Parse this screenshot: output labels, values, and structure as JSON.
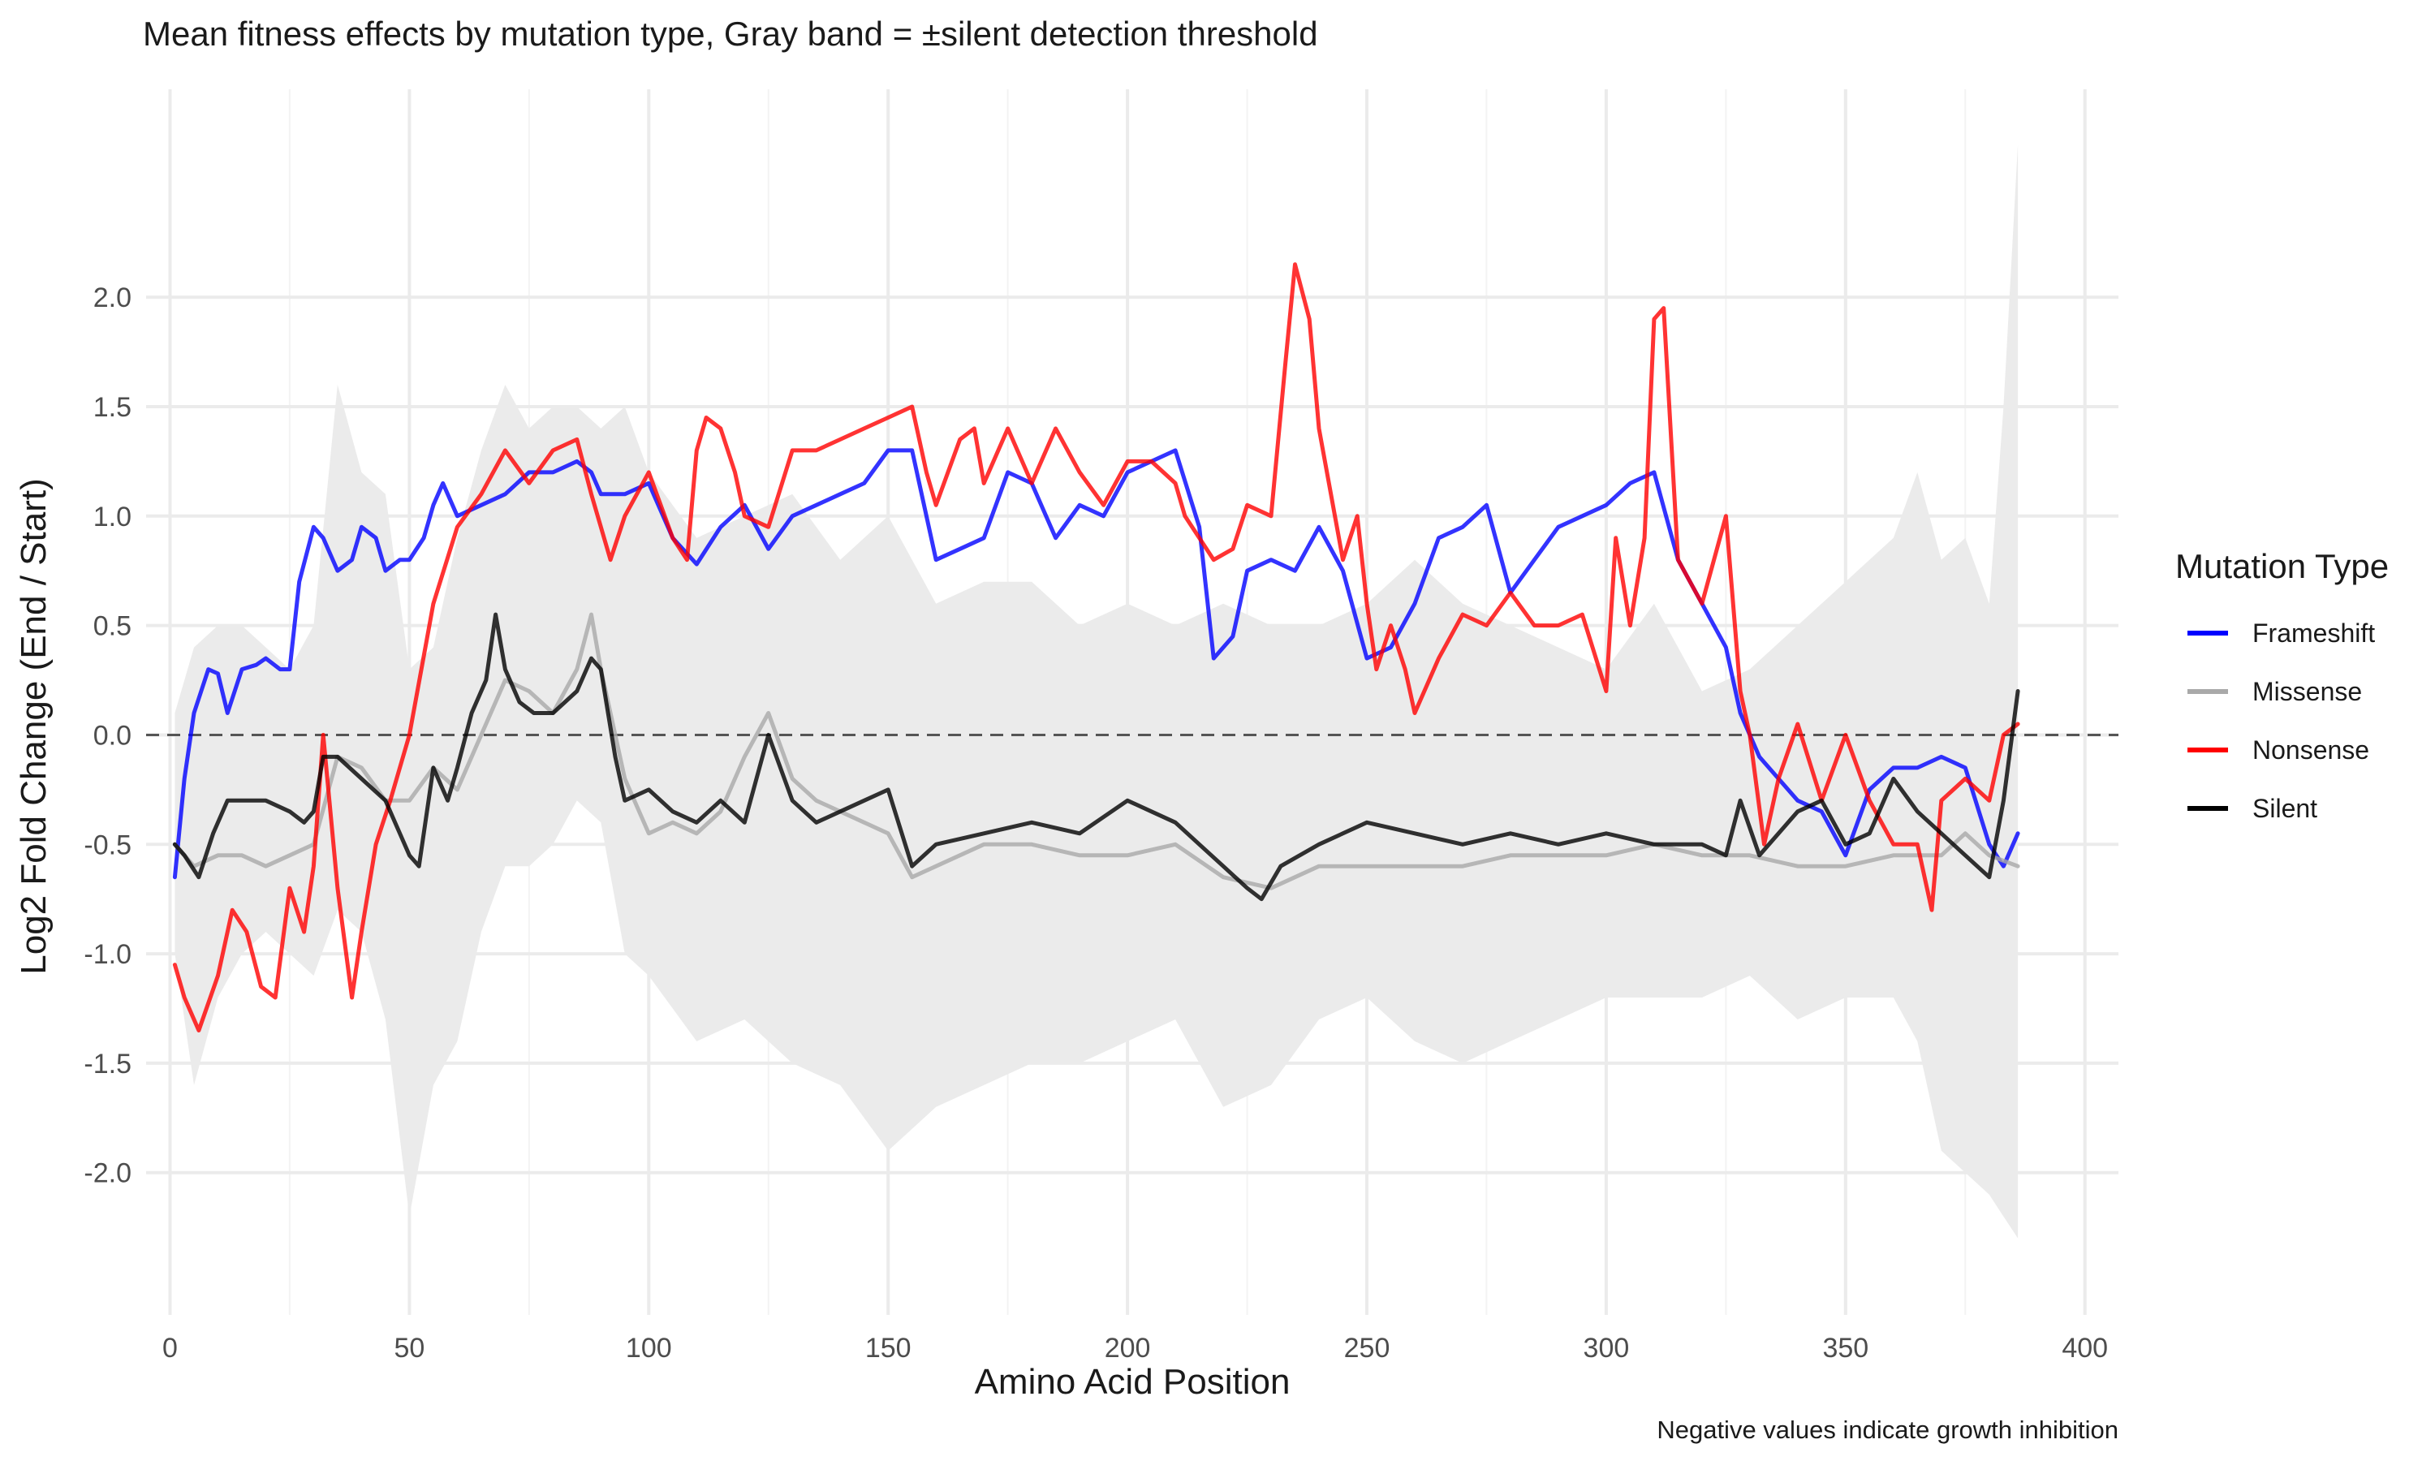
{
  "chart_data": {
    "type": "line",
    "title": "Mean fitness effects by mutation type, Gray band = ±silent detection threshold",
    "xlabel": "Amino Acid Position",
    "ylabel": "Log2 Fold Change (End / Start)",
    "caption": "Negative values indicate growth inhibition",
    "xlim": [
      -5,
      407
    ],
    "ylim": [
      -2.65,
      2.95
    ],
    "x_ticks": [
      0,
      50,
      100,
      150,
      200,
      250,
      300,
      350,
      400
    ],
    "y_ticks": [
      -2.0,
      -1.5,
      -1.0,
      -0.5,
      0.0,
      0.5,
      1.0,
      1.5,
      2.0
    ],
    "x_tick_labels": [
      "0",
      "50",
      "100",
      "150",
      "200",
      "250",
      "300",
      "350",
      "400"
    ],
    "y_tick_labels": [
      "-2.0",
      "-1.5",
      "-1.0",
      "-0.5",
      "0.0",
      "0.5",
      "1.0",
      "1.5",
      "2.0"
    ],
    "grid": true,
    "zero_line": {
      "y": 0,
      "style": "dashed"
    },
    "legend": {
      "title": "Mutation Type",
      "position": "right"
    },
    "band": {
      "name": "±silent detection threshold",
      "color": "#ebebeb",
      "x": [
        1,
        5,
        10,
        15,
        20,
        25,
        30,
        35,
        40,
        45,
        50,
        55,
        60,
        65,
        70,
        75,
        80,
        85,
        90,
        95,
        100,
        110,
        120,
        130,
        140,
        150,
        160,
        170,
        180,
        190,
        200,
        210,
        220,
        230,
        240,
        250,
        260,
        270,
        280,
        290,
        300,
        310,
        320,
        330,
        340,
        350,
        360,
        365,
        370,
        375,
        380,
        383,
        386
      ],
      "upper": [
        0.1,
        0.4,
        0.5,
        0.5,
        0.4,
        0.3,
        0.5,
        1.6,
        1.2,
        1.1,
        0.3,
        0.4,
        0.9,
        1.3,
        1.6,
        1.4,
        1.5,
        1.5,
        1.4,
        1.5,
        1.2,
        0.9,
        1.0,
        1.1,
        0.8,
        1.0,
        0.6,
        0.7,
        0.7,
        0.5,
        0.6,
        0.5,
        0.6,
        0.5,
        0.5,
        0.6,
        0.8,
        0.6,
        0.5,
        0.4,
        0.3,
        0.6,
        0.2,
        0.3,
        0.5,
        0.7,
        0.9,
        1.2,
        0.8,
        0.9,
        0.6,
        1.5,
        2.7
      ],
      "lower": [
        -1.0,
        -1.6,
        -1.2,
        -1.0,
        -0.9,
        -1.0,
        -1.1,
        -0.8,
        -0.9,
        -1.3,
        -2.2,
        -1.6,
        -1.4,
        -0.9,
        -0.6,
        -0.6,
        -0.5,
        -0.3,
        -0.4,
        -1.0,
        -1.1,
        -1.4,
        -1.3,
        -1.5,
        -1.6,
        -1.9,
        -1.7,
        -1.6,
        -1.5,
        -1.5,
        -1.4,
        -1.3,
        -1.7,
        -1.6,
        -1.3,
        -1.2,
        -1.4,
        -1.5,
        -1.4,
        -1.3,
        -1.2,
        -1.2,
        -1.2,
        -1.1,
        -1.3,
        -1.2,
        -1.2,
        -1.4,
        -1.9,
        -2.0,
        -2.1,
        -2.2,
        -2.3
      ]
    },
    "series": [
      {
        "name": "Frameshift",
        "color": "#0000ff",
        "x": [
          1,
          3,
          5,
          8,
          10,
          12,
          15,
          18,
          20,
          23,
          25,
          27,
          30,
          32,
          35,
          38,
          40,
          43,
          45,
          48,
          50,
          53,
          55,
          57,
          60,
          65,
          70,
          75,
          80,
          85,
          88,
          90,
          95,
          100,
          105,
          110,
          115,
          120,
          125,
          130,
          135,
          140,
          145,
          150,
          155,
          160,
          165,
          170,
          175,
          180,
          185,
          190,
          195,
          200,
          205,
          210,
          215,
          218,
          222,
          225,
          230,
          235,
          240,
          245,
          250,
          255,
          260,
          265,
          270,
          275,
          280,
          285,
          290,
          295,
          300,
          305,
          310,
          315,
          320,
          325,
          328,
          332,
          336,
          340,
          345,
          350,
          355,
          360,
          365,
          370,
          375,
          380,
          383,
          386
        ],
        "values": [
          -0.65,
          -0.2,
          0.1,
          0.3,
          0.28,
          0.1,
          0.3,
          0.32,
          0.35,
          0.3,
          0.3,
          0.7,
          0.95,
          0.9,
          0.75,
          0.8,
          0.95,
          0.9,
          0.75,
          0.8,
          0.8,
          0.9,
          1.05,
          1.15,
          1.0,
          1.05,
          1.1,
          1.2,
          1.2,
          1.25,
          1.2,
          1.1,
          1.1,
          1.15,
          0.9,
          0.78,
          0.95,
          1.05,
          0.85,
          1.0,
          1.05,
          1.1,
          1.15,
          1.3,
          1.3,
          0.8,
          0.85,
          0.9,
          1.2,
          1.15,
          0.9,
          1.05,
          1.0,
          1.2,
          1.25,
          1.3,
          0.95,
          0.35,
          0.45,
          0.75,
          0.8,
          0.75,
          0.95,
          0.75,
          0.35,
          0.4,
          0.6,
          0.9,
          0.95,
          1.05,
          0.65,
          0.8,
          0.95,
          1.0,
          1.05,
          1.15,
          1.2,
          0.8,
          0.6,
          0.4,
          0.1,
          -0.1,
          -0.2,
          -0.3,
          -0.35,
          -0.55,
          -0.25,
          -0.15,
          -0.15,
          -0.1,
          -0.15,
          -0.5,
          -0.6,
          -0.45
        ]
      },
      {
        "name": "Missense",
        "color": "#a9a9a9",
        "x": [
          1,
          5,
          10,
          15,
          20,
          25,
          30,
          35,
          40,
          45,
          50,
          55,
          60,
          65,
          70,
          75,
          80,
          85,
          88,
          90,
          93,
          95,
          100,
          105,
          110,
          115,
          120,
          125,
          130,
          135,
          140,
          145,
          150,
          155,
          160,
          170,
          180,
          190,
          200,
          210,
          220,
          230,
          240,
          250,
          260,
          270,
          280,
          290,
          300,
          310,
          320,
          330,
          340,
          350,
          360,
          370,
          375,
          380,
          386
        ],
        "values": [
          -0.5,
          -0.6,
          -0.55,
          -0.55,
          -0.6,
          -0.55,
          -0.5,
          -0.1,
          -0.15,
          -0.3,
          -0.3,
          -0.15,
          -0.25,
          0.0,
          0.25,
          0.2,
          0.1,
          0.3,
          0.55,
          0.3,
          0.0,
          -0.2,
          -0.45,
          -0.4,
          -0.45,
          -0.35,
          -0.1,
          0.1,
          -0.2,
          -0.3,
          -0.35,
          -0.4,
          -0.45,
          -0.65,
          -0.6,
          -0.5,
          -0.5,
          -0.55,
          -0.55,
          -0.5,
          -0.65,
          -0.7,
          -0.6,
          -0.6,
          -0.6,
          -0.6,
          -0.55,
          -0.55,
          -0.55,
          -0.5,
          -0.55,
          -0.55,
          -0.6,
          -0.6,
          -0.55,
          -0.55,
          -0.45,
          -0.55,
          -0.6
        ]
      },
      {
        "name": "Nonsense",
        "color": "#ff0000",
        "x": [
          1,
          3,
          6,
          10,
          13,
          16,
          19,
          22,
          25,
          28,
          30,
          32,
          35,
          38,
          40,
          43,
          46,
          50,
          55,
          60,
          65,
          70,
          75,
          80,
          85,
          88,
          92,
          95,
          100,
          105,
          108,
          110,
          112,
          115,
          118,
          120,
          125,
          130,
          135,
          140,
          145,
          150,
          155,
          158,
          160,
          165,
          168,
          170,
          175,
          180,
          185,
          190,
          195,
          200,
          205,
          210,
          212,
          215,
          218,
          222,
          225,
          230,
          233,
          235,
          238,
          240,
          245,
          248,
          250,
          252,
          255,
          258,
          260,
          265,
          270,
          275,
          280,
          285,
          290,
          295,
          300,
          302,
          305,
          308,
          310,
          312,
          315,
          320,
          325,
          328,
          330,
          333,
          336,
          340,
          345,
          350,
          355,
          360,
          365,
          368,
          370,
          375,
          380,
          383,
          386
        ],
        "values": [
          -1.05,
          -1.2,
          -1.35,
          -1.1,
          -0.8,
          -0.9,
          -1.15,
          -1.2,
          -0.7,
          -0.9,
          -0.6,
          0.0,
          -0.7,
          -1.2,
          -0.9,
          -0.5,
          -0.3,
          0.0,
          0.6,
          0.95,
          1.1,
          1.3,
          1.15,
          1.3,
          1.35,
          1.1,
          0.8,
          1.0,
          1.2,
          0.9,
          0.8,
          1.3,
          1.45,
          1.4,
          1.2,
          1.0,
          0.95,
          1.3,
          1.3,
          1.35,
          1.4,
          1.45,
          1.5,
          1.2,
          1.05,
          1.35,
          1.4,
          1.15,
          1.4,
          1.15,
          1.4,
          1.2,
          1.05,
          1.25,
          1.25,
          1.15,
          1.0,
          0.9,
          0.8,
          0.85,
          1.05,
          1.0,
          1.7,
          2.15,
          1.9,
          1.4,
          0.8,
          1.0,
          0.6,
          0.3,
          0.5,
          0.3,
          0.1,
          0.35,
          0.55,
          0.5,
          0.65,
          0.5,
          0.5,
          0.55,
          0.2,
          0.9,
          0.5,
          0.9,
          1.9,
          1.95,
          0.8,
          0.6,
          1.0,
          0.2,
          0.0,
          -0.5,
          -0.2,
          0.05,
          -0.3,
          0.0,
          -0.3,
          -0.5,
          -0.5,
          -0.8,
          -0.3,
          -0.2,
          -0.3,
          0.0,
          0.05
        ]
      },
      {
        "name": "Silent",
        "color": "#000000",
        "x": [
          1,
          3,
          6,
          9,
          12,
          15,
          20,
          25,
          28,
          30,
          32,
          35,
          40,
          45,
          48,
          50,
          52,
          55,
          58,
          60,
          63,
          66,
          68,
          70,
          73,
          76,
          80,
          85,
          88,
          90,
          93,
          95,
          100,
          105,
          110,
          115,
          120,
          125,
          130,
          135,
          140,
          145,
          150,
          155,
          160,
          170,
          180,
          190,
          200,
          205,
          210,
          215,
          220,
          225,
          228,
          232,
          240,
          250,
          260,
          270,
          280,
          290,
          300,
          310,
          320,
          325,
          328,
          332,
          336,
          340,
          345,
          350,
          355,
          360,
          365,
          370,
          375,
          380,
          383,
          386
        ],
        "values": [
          -0.5,
          -0.55,
          -0.65,
          -0.45,
          -0.3,
          -0.3,
          -0.3,
          -0.35,
          -0.4,
          -0.35,
          -0.1,
          -0.1,
          -0.2,
          -0.3,
          -0.45,
          -0.55,
          -0.6,
          -0.15,
          -0.3,
          -0.15,
          0.1,
          0.25,
          0.55,
          0.3,
          0.15,
          0.1,
          0.1,
          0.2,
          0.35,
          0.3,
          -0.1,
          -0.3,
          -0.25,
          -0.35,
          -0.4,
          -0.3,
          -0.4,
          0.0,
          -0.3,
          -0.4,
          -0.35,
          -0.3,
          -0.25,
          -0.6,
          -0.5,
          -0.45,
          -0.4,
          -0.45,
          -0.3,
          -0.35,
          -0.4,
          -0.5,
          -0.6,
          -0.7,
          -0.75,
          -0.6,
          -0.5,
          -0.4,
          -0.45,
          -0.5,
          -0.45,
          -0.5,
          -0.45,
          -0.5,
          -0.5,
          -0.55,
          -0.3,
          -0.55,
          -0.45,
          -0.35,
          -0.3,
          -0.5,
          -0.45,
          -0.2,
          -0.35,
          -0.45,
          -0.55,
          -0.65,
          -0.3,
          0.2
        ]
      }
    ]
  }
}
